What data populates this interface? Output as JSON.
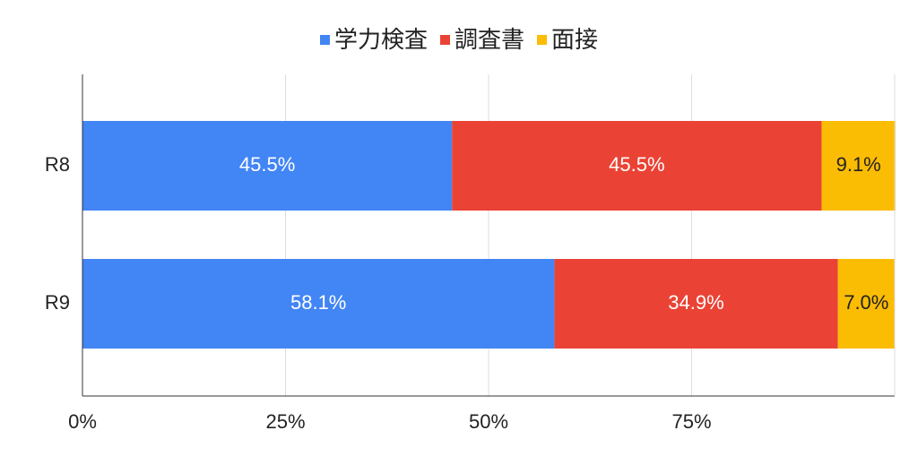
{
  "chart_data": {
    "type": "stacked-bar-horizontal",
    "categories": [
      "R8",
      "R9"
    ],
    "series": [
      {
        "name": "学力検査",
        "color": "#4285f4",
        "label_color": "#ffffff",
        "values": [
          45.5,
          58.1
        ],
        "value_labels": [
          "45.5%",
          "58.1%"
        ]
      },
      {
        "name": "調査書",
        "color": "#ea4335",
        "label_color": "#ffffff",
        "values": [
          45.5,
          34.9
        ],
        "value_labels": [
          "45.5%",
          "34.9%"
        ]
      },
      {
        "name": "面接",
        "color": "#fbbc04",
        "label_color": "#222222",
        "values": [
          9.1,
          7.0
        ],
        "value_labels": [
          "9.1%",
          "7.0%"
        ]
      }
    ],
    "xlim": [
      0,
      100
    ],
    "xticks": [
      {
        "value": 0,
        "label": "0%"
      },
      {
        "value": 25,
        "label": "25%"
      },
      {
        "value": 50,
        "label": "50%"
      },
      {
        "value": 75,
        "label": "75%"
      }
    ],
    "grid": true,
    "legend": "top"
  }
}
